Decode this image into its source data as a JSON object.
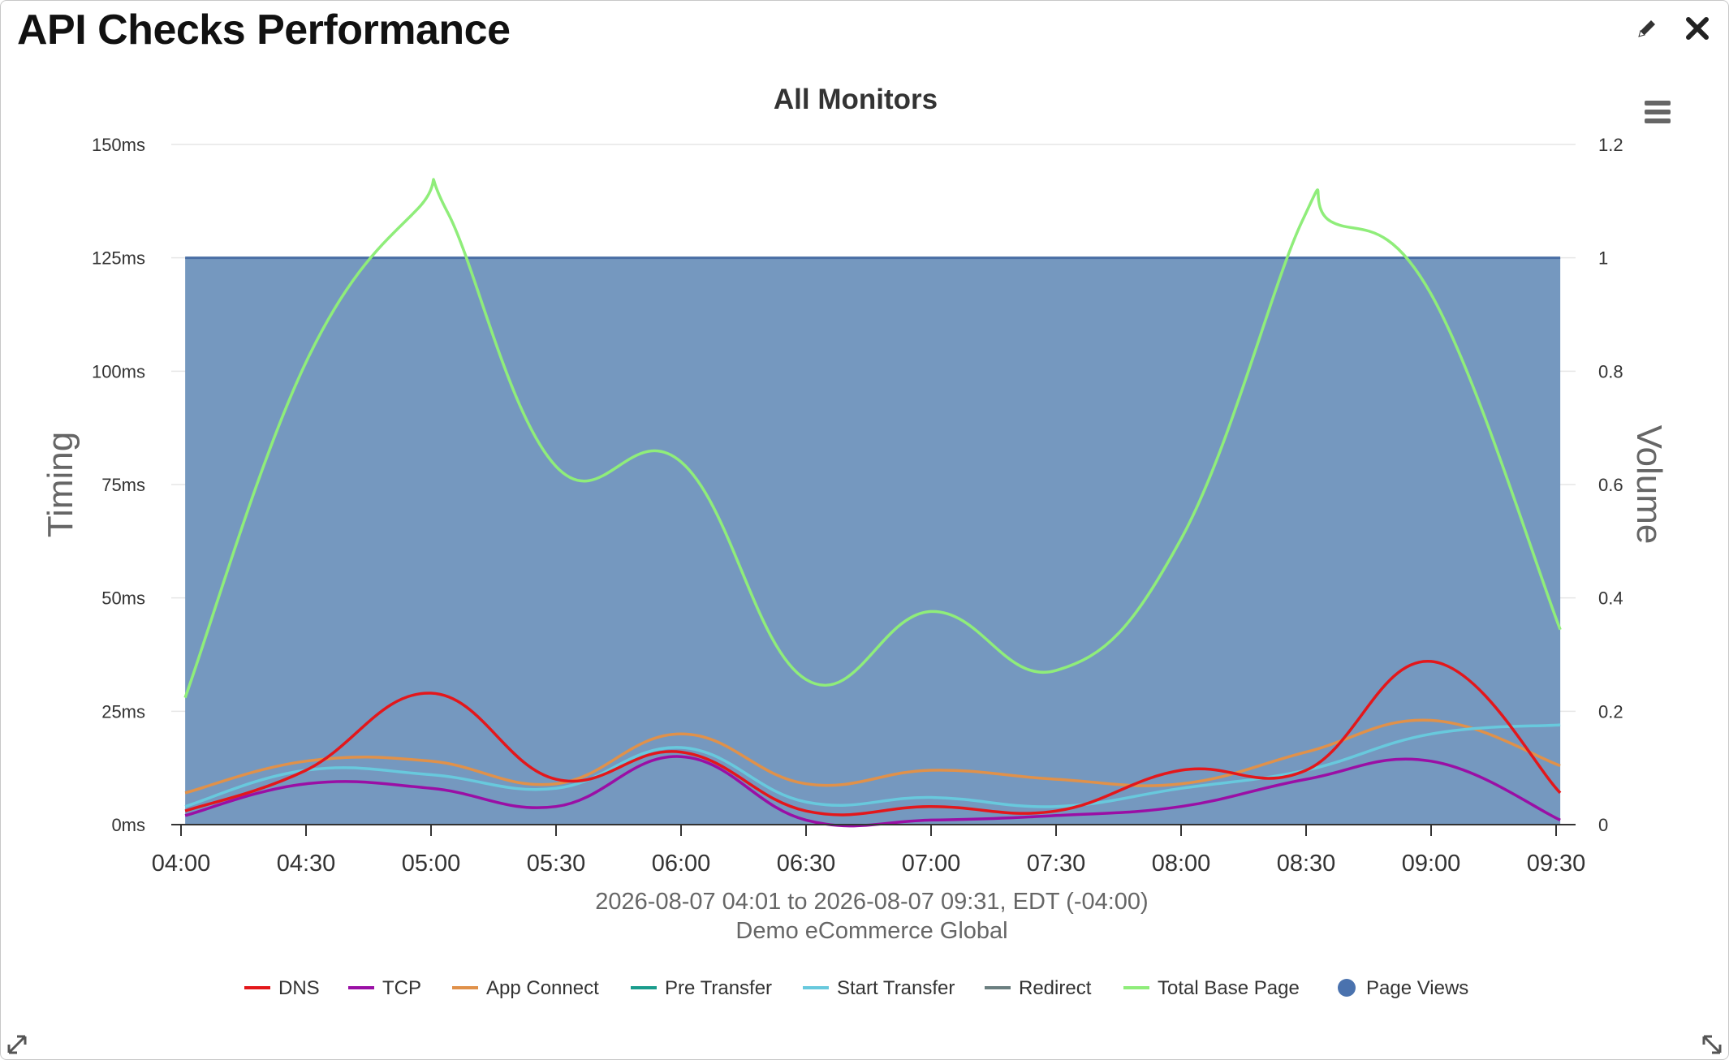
{
  "widget": {
    "title": "API Checks Performance",
    "edit_icon": "pencil-icon",
    "close_icon": "close-icon",
    "menu_icon": "hamburger-menu-icon",
    "resize_icons": [
      "resize-left-icon",
      "resize-right-icon"
    ]
  },
  "chart_data": {
    "type": "line",
    "title": "All Monitors",
    "subtitle_lines": [
      "2026-08-07 04:01 to 2026-08-07 09:31, EDT (-04:00)",
      "Demo eCommerce Global"
    ],
    "ylabel_left": "Timing",
    "ylabel_right": "Volume",
    "y_left_ticks": [
      "0ms",
      "25ms",
      "50ms",
      "75ms",
      "100ms",
      "125ms",
      "150ms"
    ],
    "y_left_range": [
      0,
      150
    ],
    "y_right_ticks": [
      "0",
      "0.2",
      "0.4",
      "0.6",
      "0.8",
      "1",
      "1.2"
    ],
    "y_right_range": [
      0,
      1.2
    ],
    "x_ticks": [
      "04:00",
      "04:30",
      "05:00",
      "05:30",
      "06:00",
      "06:30",
      "07:00",
      "07:30",
      "08:00",
      "08:30",
      "09:00",
      "09:30"
    ],
    "x_range_minutes": [
      0,
      330
    ],
    "grid": true,
    "legend_position": "bottom",
    "page_views": {
      "name": "Page Views",
      "type": "area",
      "axis": "right",
      "color": "#7598bf",
      "line_color": "#4a6fa5",
      "x": [
        1,
        331
      ],
      "values": [
        1,
        1
      ]
    },
    "series": [
      {
        "name": "DNS",
        "color": "#e3171b",
        "x": [
          1,
          30,
          60,
          90,
          120,
          150,
          180,
          210,
          240,
          270,
          300,
          331
        ],
        "values": [
          3,
          12,
          29,
          10,
          16,
          3,
          4,
          3,
          12,
          12,
          36,
          7
        ]
      },
      {
        "name": "TCP",
        "color": "#9a0fa5",
        "x": [
          1,
          30,
          60,
          90,
          120,
          150,
          180,
          210,
          240,
          270,
          300,
          331
        ],
        "values": [
          2,
          9,
          8,
          4,
          15,
          1,
          1,
          2,
          4,
          10,
          14,
          1
        ]
      },
      {
        "name": "App Connect",
        "color": "#e0914a",
        "x": [
          1,
          30,
          60,
          90,
          120,
          150,
          180,
          210,
          240,
          270,
          300,
          331
        ],
        "values": [
          7,
          14,
          14,
          9,
          20,
          9,
          12,
          10,
          9,
          16,
          23,
          13
        ]
      },
      {
        "name": "Pre Transfer",
        "color": "#1a9c8c",
        "x": [],
        "values": []
      },
      {
        "name": "Start Transfer",
        "color": "#68c9dd",
        "x": [
          1,
          30,
          60,
          90,
          120,
          150,
          180,
          210,
          240,
          270,
          300,
          331
        ],
        "values": [
          4,
          12,
          11,
          8,
          17,
          5,
          6,
          4,
          8,
          12,
          20,
          22
        ]
      },
      {
        "name": "Redirect",
        "color": "#6b7f80",
        "x": [],
        "values": []
      },
      {
        "name": "Total Base Page",
        "color": "#8fed7a",
        "x": [
          1,
          30,
          57,
          64,
          90,
          120,
          150,
          180,
          210,
          240,
          269,
          276,
          300,
          331
        ],
        "values": [
          28,
          102,
          136,
          135,
          79,
          80,
          32,
          47,
          34,
          63,
          133,
          133,
          117,
          43
        ]
      }
    ]
  }
}
